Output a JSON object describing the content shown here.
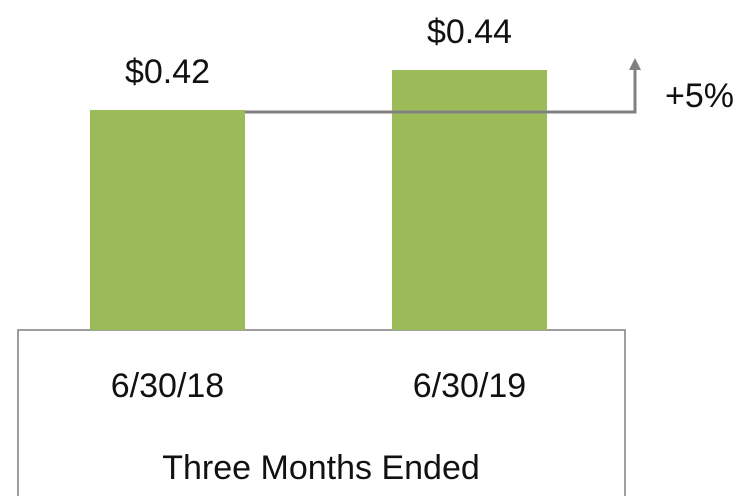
{
  "chart_data": {
    "type": "bar",
    "categories": [
      "6/30/18",
      "6/30/19"
    ],
    "values": [
      0.42,
      0.44
    ],
    "value_labels": [
      "$0.42",
      "$0.44"
    ],
    "color": "#9bbb59",
    "ylim": [
      0.31,
      0.475
    ],
    "xlabel": "Three Months Ended",
    "annotation": "+5%"
  }
}
